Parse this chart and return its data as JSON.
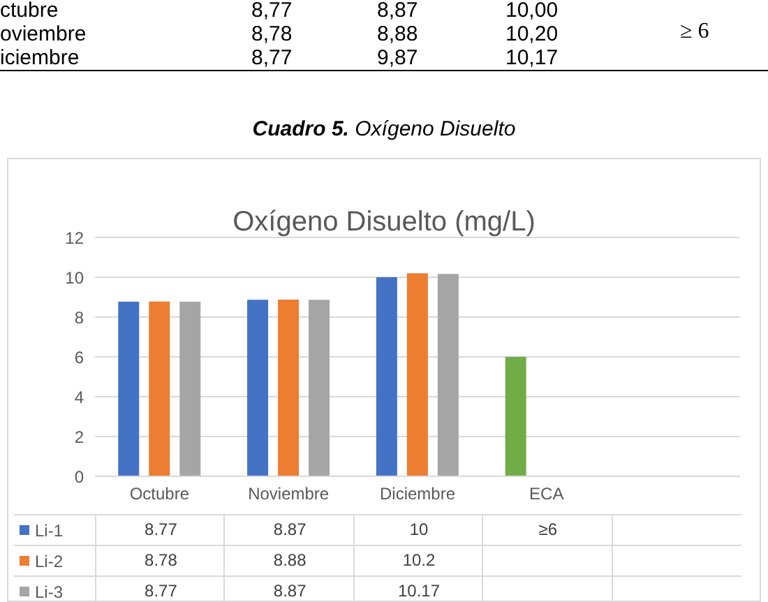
{
  "chart_data": {
    "type": "bar",
    "title": "Oxígeno Disuelto (mg/L)",
    "categories": [
      "Octubre",
      "Noviembre",
      "Diciembre",
      "ECA",
      null
    ],
    "series": [
      {
        "name": "Li-1",
        "color": "#4472c4",
        "colors": [
          "#4472c4",
          "#4472c4",
          "#4472c4",
          "#70ad47",
          null
        ],
        "values": [
          8.77,
          8.87,
          10,
          6,
          null
        ],
        "value_labels": [
          "8.77",
          "8.87",
          "10",
          "≥6",
          null
        ]
      },
      {
        "name": "Li-2",
        "color": "#ed7d31",
        "values": [
          8.78,
          8.88,
          10.2,
          null,
          null
        ],
        "value_labels": [
          "8.78",
          "8.88",
          "10.2",
          null,
          null
        ]
      },
      {
        "name": "Li-3",
        "color": "#a5a5a5",
        "values": [
          8.77,
          8.87,
          10.17,
          null,
          null
        ],
        "value_labels": [
          "8.77",
          "8.87",
          "10.17",
          null,
          null
        ]
      }
    ],
    "ylim": [
      0,
      12
    ],
    "yticks": [
      0,
      2,
      4,
      6,
      8,
      10,
      12
    ],
    "grid": "y",
    "legend": "bottom",
    "annotations": [
      "ctubre 8,77 8,87 10,00",
      "oviembre 8,78 8,88 10,20",
      "iciembre 8,77 9,87 10,17",
      "≥ 6",
      "Cuadro 5. Oxígeno Disuelto"
    ]
  }
}
